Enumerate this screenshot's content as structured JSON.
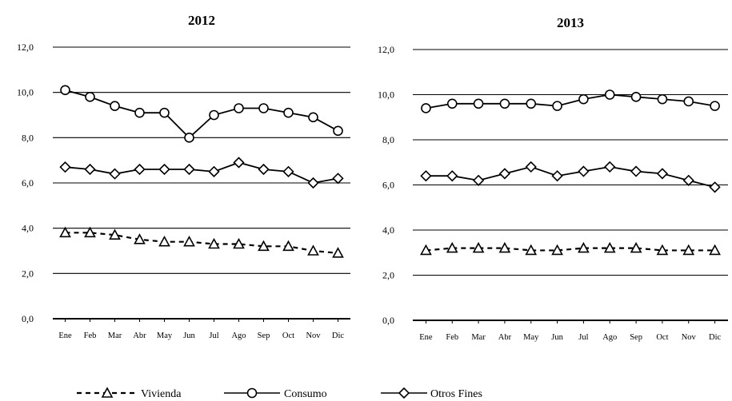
{
  "chart_data": [
    {
      "type": "line",
      "title": "2012",
      "categories": [
        "Ene",
        "Feb",
        "Mar",
        "Abr",
        "May",
        "Jun",
        "Jul",
        "Ago",
        "Sep",
        "Oct",
        "Nov",
        "Dic"
      ],
      "ylim": [
        0,
        12
      ],
      "yticks": [
        "0,0",
        "2,0",
        "4,0",
        "6,0",
        "8,0",
        "10,0",
        "12,0"
      ],
      "grid": true,
      "series": [
        {
          "name": "Vivienda",
          "values": [
            3.8,
            3.8,
            3.7,
            3.5,
            3.4,
            3.4,
            3.3,
            3.3,
            3.2,
            3.2,
            3.0,
            2.9
          ],
          "style": "dashed",
          "marker": "triangle"
        },
        {
          "name": "Consumo",
          "values": [
            10.1,
            9.8,
            9.4,
            9.1,
            9.1,
            8.0,
            9.0,
            9.3,
            9.3,
            9.1,
            8.9,
            8.3
          ],
          "style": "solid",
          "marker": "circle"
        },
        {
          "name": "Otros Fines",
          "values": [
            6.7,
            6.6,
            6.4,
            6.6,
            6.6,
            6.6,
            6.5,
            6.9,
            6.6,
            6.5,
            6.0,
            6.2
          ],
          "style": "solid",
          "marker": "diamond"
        }
      ]
    },
    {
      "type": "line",
      "title": "2013",
      "categories": [
        "Ene",
        "Feb",
        "Mar",
        "Abr",
        "May",
        "Jun",
        "Jul",
        "Ago",
        "Sep",
        "Oct",
        "Nov",
        "Dic"
      ],
      "ylim": [
        0,
        12
      ],
      "yticks": [
        "0,0",
        "2,0",
        "4,0",
        "6,0",
        "8,0",
        "10,0",
        "12,0"
      ],
      "grid": true,
      "series": [
        {
          "name": "Vivienda",
          "values": [
            3.1,
            3.2,
            3.2,
            3.2,
            3.1,
            3.1,
            3.2,
            3.2,
            3.2,
            3.1,
            3.1,
            3.1
          ],
          "style": "dashed",
          "marker": "triangle"
        },
        {
          "name": "Consumo",
          "values": [
            9.4,
            9.6,
            9.6,
            9.6,
            9.6,
            9.5,
            9.8,
            10.0,
            9.9,
            9.8,
            9.7,
            9.5
          ],
          "style": "solid",
          "marker": "circle"
        },
        {
          "name": "Otros Fines",
          "values": [
            6.4,
            6.4,
            6.2,
            6.5,
            6.8,
            6.4,
            6.6,
            6.8,
            6.6,
            6.5,
            6.2,
            5.9
          ],
          "style": "solid",
          "marker": "diamond"
        }
      ]
    }
  ],
  "legend": {
    "placement": "bottom",
    "items": [
      {
        "label": "Vivienda",
        "marker": "triangle",
        "style": "dashed"
      },
      {
        "label": "Consumo",
        "marker": "circle",
        "style": "solid"
      },
      {
        "label": "Otros Fines",
        "marker": "diamond",
        "style": "solid"
      }
    ]
  }
}
